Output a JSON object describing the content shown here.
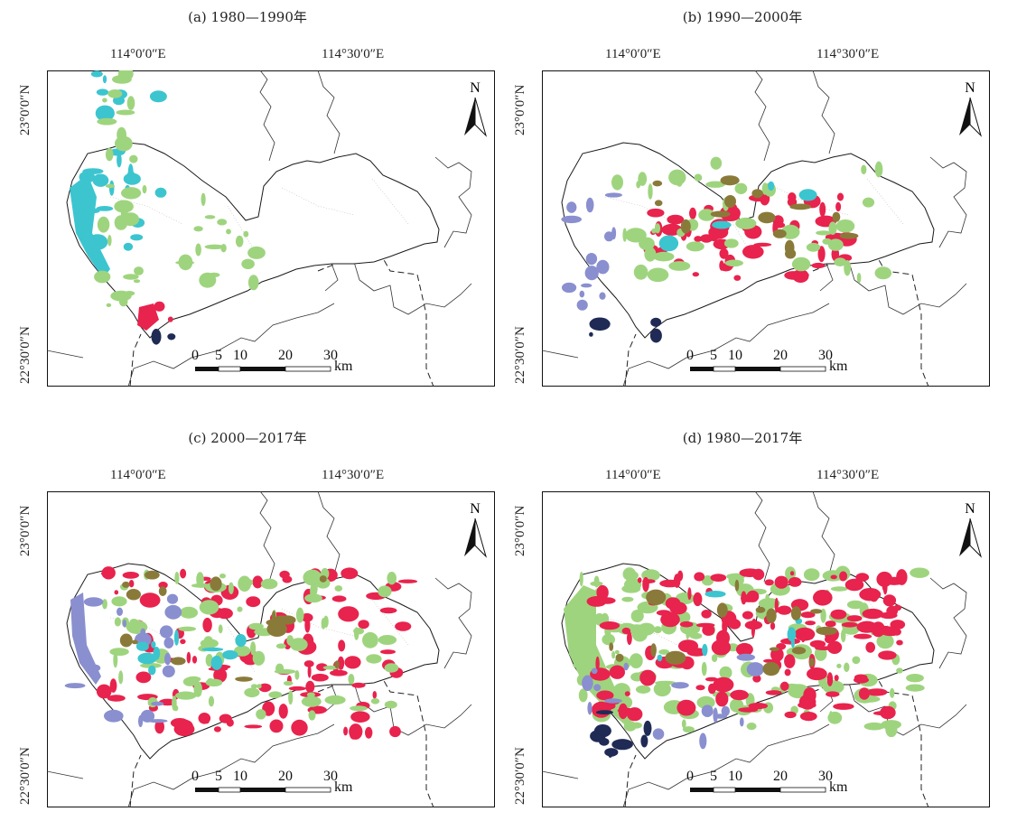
{
  "panels": [
    {
      "id": "a",
      "title": "(a) 1980—1990年"
    },
    {
      "id": "b",
      "title": "(b) 1990—2000年"
    },
    {
      "id": "c",
      "title": "(c) 2000—2017年"
    },
    {
      "id": "d",
      "title": "(d) 1980—2017年"
    }
  ],
  "axes": {
    "lon_labels": [
      "114°0′0″E",
      "114°30′0″E"
    ],
    "lat_labels": [
      "23°0′0″N",
      "22°30′0″N"
    ]
  },
  "north_arrow": {
    "label": "N",
    "icon": "north-arrow-icon"
  },
  "scale_bar": {
    "ticks": [
      "0",
      "5",
      "10",
      "20",
      "30"
    ],
    "unit": "km"
  },
  "colors": {
    "green": "#9fd47f",
    "cyan": "#3cc5cf",
    "red": "#e8234d",
    "lavender": "#8a8fcf",
    "navy": "#1f2b55",
    "olive": "#8a7a3a",
    "outline": "#1a1a1a",
    "district": "#bdbdbd"
  }
}
